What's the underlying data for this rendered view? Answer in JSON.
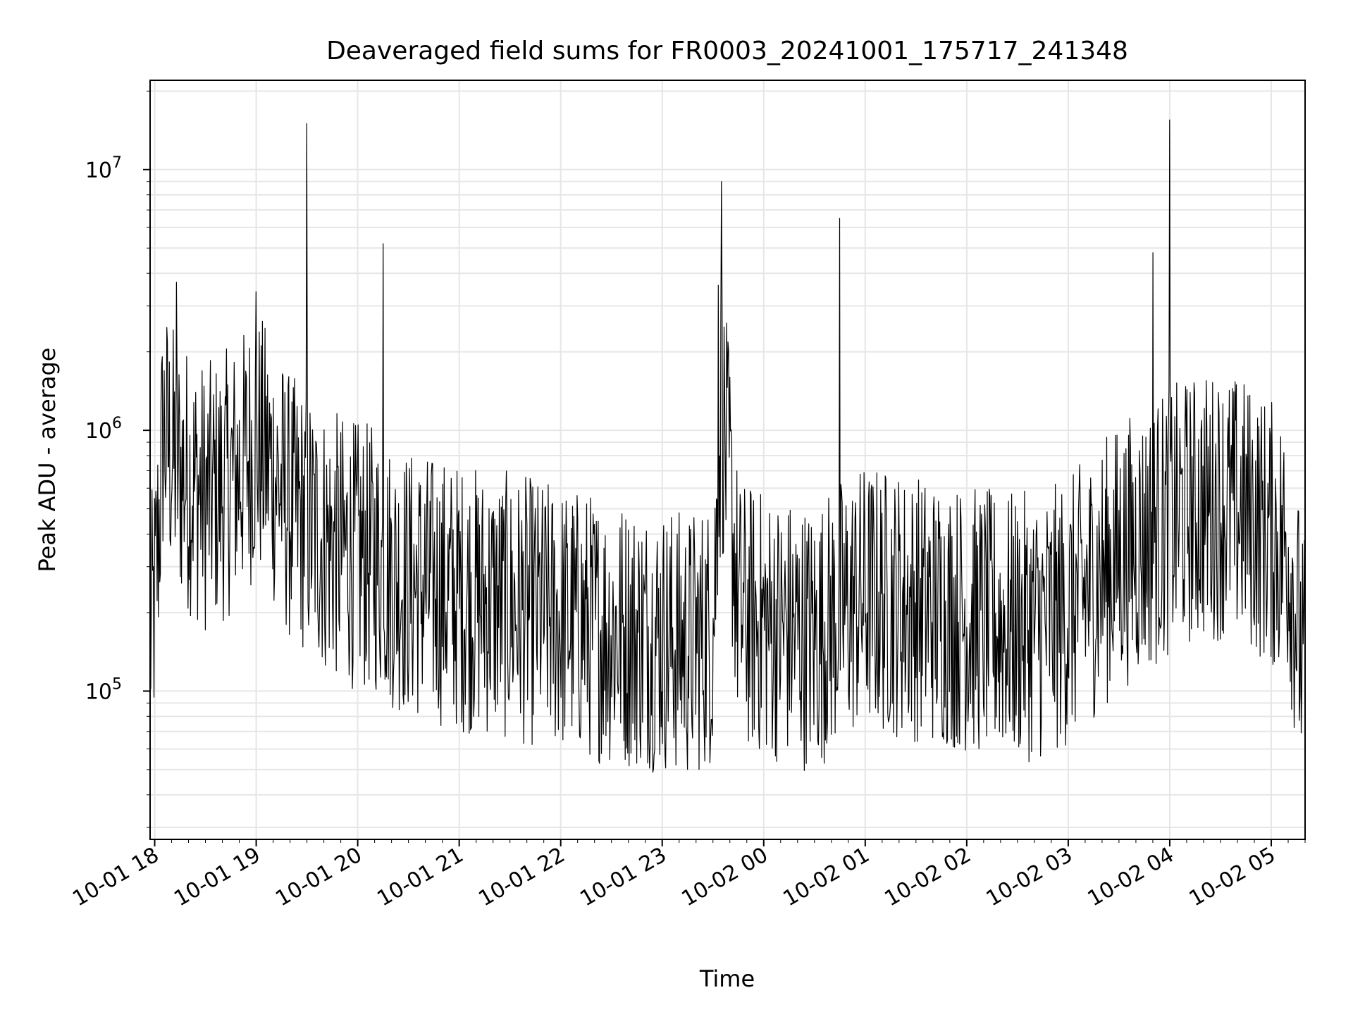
{
  "chart_data": {
    "type": "line",
    "title": "Deaveraged field sums for FR0003_20241001_175717_241348",
    "xlabel": "Time",
    "ylabel": "Peak ADU - average",
    "yscale": "log",
    "xlim": [
      "2024-10-01 17:57:17",
      "2024-10-02 05:20:00"
    ],
    "ylim": [
      27000,
      22000000
    ],
    "grid": true,
    "line_color": "#000000",
    "x_tick_labels": [
      "10-01 18",
      "10-01 19",
      "10-01 20",
      "10-01 21",
      "10-01 22",
      "10-01 23",
      "10-02 00",
      "10-02 01",
      "10-02 02",
      "10-02 03",
      "10-02 04",
      "10-02 05"
    ],
    "y_tick_labels": [
      {
        "value": 100000,
        "base": "10",
        "exp": "5"
      },
      {
        "value": 1000000,
        "base": "10",
        "exp": "6"
      },
      {
        "value": 10000000,
        "base": "10",
        "exp": "7"
      }
    ],
    "series": [
      {
        "x": [
          "2024-10-01 17:57",
          "2024-10-01 18:00",
          "2024-10-01 18:03",
          "2024-10-01 18:05",
          "2024-10-01 18:10",
          "2024-10-01 18:15",
          "2024-10-01 18:20",
          "2024-10-01 18:30",
          "2024-10-01 18:40",
          "2024-10-01 18:50",
          "2024-10-01 19:00",
          "2024-10-01 19:10",
          "2024-10-01 19:20",
          "2024-10-01 19:30",
          "2024-10-01 19:40",
          "2024-10-01 19:50",
          "2024-10-01 20:00",
          "2024-10-01 20:10",
          "2024-10-01 20:15",
          "2024-10-01 20:20",
          "2024-10-01 20:30",
          "2024-10-01 20:40",
          "2024-10-01 20:50",
          "2024-10-01 21:00",
          "2024-10-01 21:15",
          "2024-10-01 21:30",
          "2024-10-01 21:45",
          "2024-10-01 22:00",
          "2024-10-01 22:15",
          "2024-10-01 22:30",
          "2024-10-01 22:45",
          "2024-10-01 23:00",
          "2024-10-01 23:15",
          "2024-10-01 23:30",
          "2024-10-01 23:35",
          "2024-10-01 23:40",
          "2024-10-01 23:45",
          "2024-10-02 00:00",
          "2024-10-02 00:15",
          "2024-10-02 00:30",
          "2024-10-02 00:45",
          "2024-10-02 01:00",
          "2024-10-02 01:15",
          "2024-10-02 01:30",
          "2024-10-02 01:45",
          "2024-10-02 02:00",
          "2024-10-02 02:15",
          "2024-10-02 02:30",
          "2024-10-02 02:45",
          "2024-10-02 03:00",
          "2024-10-02 03:15",
          "2024-10-02 03:30",
          "2024-10-02 03:45",
          "2024-10-02 04:00",
          "2024-10-02 04:15",
          "2024-10-02 04:30",
          "2024-10-02 04:45",
          "2024-10-02 05:00",
          "2024-10-02 05:10",
          "2024-10-02 05:19"
        ],
        "values": [
          150000,
          220000,
          500000,
          1000000,
          800000,
          700000,
          650000,
          550000,
          600000,
          700000,
          900000,
          700000,
          500000,
          450000,
          380000,
          350000,
          330000,
          320000,
          300000,
          280000,
          260000,
          250000,
          240000,
          230000,
          220000,
          210000,
          200000,
          190000,
          180000,
          170000,
          165000,
          160000,
          150000,
          170000,
          1200000,
          600000,
          200000,
          180000,
          170000,
          160000,
          200000,
          230000,
          220000,
          210000,
          200000,
          190000,
          180000,
          175000,
          180000,
          200000,
          260000,
          330000,
          380000,
          450000,
          500000,
          520000,
          480000,
          400000,
          350000,
          120000
        ]
      }
    ]
  }
}
